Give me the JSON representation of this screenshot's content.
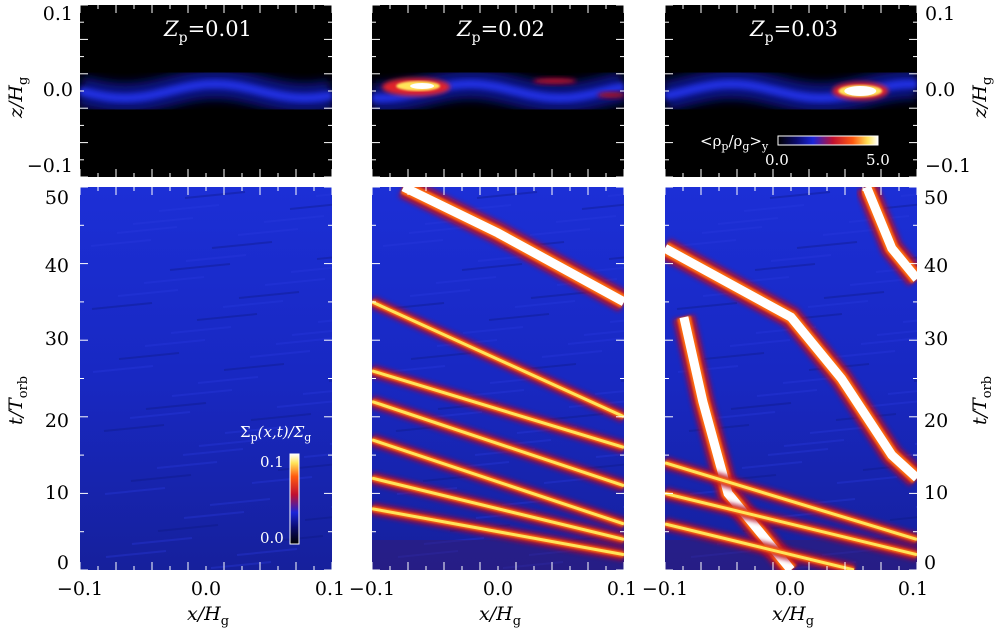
{
  "colors": {
    "background_low": "#000000",
    "blue": "#1a25d8",
    "red": "#e0202a",
    "yellow": "#ffe45a",
    "white": "#ffffff"
  },
  "chart_data": [
    {
      "type": "heatmap",
      "title": "Z_p=0.01",
      "title_parts": {
        "var": "Z",
        "sub": "p",
        "eq": "=0.01"
      },
      "panel": "vertical-slice",
      "xlim": [
        -0.1,
        0.1
      ],
      "ylim": [
        -0.1,
        0.1
      ],
      "ylabel": "z/H_g",
      "colorbar": {
        "label": "<ρp/ρg>y",
        "min": "0.0",
        "max": "5.0"
      },
      "features": "thin wavy blue dust layer, no dense clump"
    },
    {
      "type": "heatmap",
      "title": "Z_p=0.02",
      "title_parts": {
        "var": "Z",
        "sub": "p",
        "eq": "=0.02"
      },
      "panel": "vertical-slice",
      "xlim": [
        -0.1,
        0.1
      ],
      "ylim": [
        -0.1,
        0.1
      ],
      "features": "dense clump near x=-0.065, z=0.0"
    },
    {
      "type": "heatmap",
      "title": "Z_p=0.03",
      "title_parts": {
        "var": "Z",
        "sub": "p",
        "eq": "=0.03"
      },
      "panel": "vertical-slice",
      "xlim": [
        -0.1,
        0.1
      ],
      "ylim": [
        -0.1,
        0.1
      ],
      "ylabel": "z/H_g",
      "features": "dense clump near x=0.055, z=0.0"
    },
    {
      "type": "heatmap",
      "panel": "space-time",
      "xlim": [
        -0.1,
        0.1
      ],
      "ylim": [
        0,
        50
      ],
      "xlabel": "x/H_g",
      "ylabel": "t/T_orb",
      "colorbar": {
        "label": "Σp(x,t)/Σg",
        "min": "0.0",
        "max": "0.1"
      },
      "features": "uniform blue, no filaments"
    },
    {
      "type": "heatmap",
      "panel": "space-time",
      "xlim": [
        -0.1,
        0.1
      ],
      "ylim": [
        0,
        50
      ],
      "xlabel": "x/H_g",
      "filaments": [
        [
          [
            -0.1,
            35
          ],
          [
            0.1,
            20
          ]
        ],
        [
          [
            -0.1,
            26
          ],
          [
            0.1,
            16
          ]
        ],
        [
          [
            -0.1,
            22
          ],
          [
            0.1,
            11
          ]
        ],
        [
          [
            -0.1,
            17
          ],
          [
            0.1,
            6
          ]
        ],
        [
          [
            -0.1,
            12
          ],
          [
            0.1,
            4
          ]
        ],
        [
          [
            -0.1,
            8
          ],
          [
            0.1,
            2
          ]
        ],
        [
          [
            -0.075,
            50
          ],
          [
            0.0,
            44
          ],
          [
            0.1,
            35
          ]
        ]
      ]
    },
    {
      "type": "heatmap",
      "panel": "space-time",
      "xlim": [
        -0.1,
        0.1
      ],
      "ylim": [
        0,
        50
      ],
      "xlabel": "x/H_g",
      "ylabel": "t/T_orb",
      "filaments": [
        [
          [
            -0.1,
            42
          ],
          [
            0.0,
            33
          ],
          [
            0.04,
            25
          ],
          [
            0.08,
            15
          ],
          [
            0.1,
            12
          ]
        ],
        [
          [
            -0.085,
            33
          ],
          [
            -0.07,
            22
          ],
          [
            -0.05,
            10
          ],
          [
            0.0,
            0
          ]
        ],
        [
          [
            0.06,
            50
          ],
          [
            0.08,
            42
          ],
          [
            0.1,
            38
          ]
        ],
        [
          [
            -0.1,
            14
          ],
          [
            0.1,
            4
          ]
        ],
        [
          [
            -0.1,
            10
          ],
          [
            0.1,
            2
          ]
        ],
        [
          [
            -0.1,
            6
          ],
          [
            0.05,
            0
          ]
        ]
      ]
    }
  ],
  "axes": {
    "top_y_ticks": [
      "0.1",
      "0.0",
      "−0.1"
    ],
    "bottom_y_ticks": [
      "50",
      "40",
      "30",
      "20",
      "10",
      "0"
    ],
    "x_ticks": [
      "−0.1",
      "0.0",
      "0.1"
    ],
    "z_label": {
      "var": "z/H",
      "sub": "g"
    },
    "t_label": {
      "var": "t/T",
      "sub": "orb"
    },
    "x_label": {
      "var": "x/H",
      "sub": "g"
    }
  },
  "colorbars": {
    "rho": {
      "open": "<ρ",
      "p": "p",
      "slash": "/ρ",
      "g": "g",
      "close": ">",
      "y": "y",
      "min": "0.0",
      "max": "5.0"
    },
    "sigma": {
      "pre": "Σ",
      "p": "p",
      "mid": "(x,t)/Σ",
      "g": "g",
      "min": "0.0",
      "max": "0.1"
    }
  }
}
